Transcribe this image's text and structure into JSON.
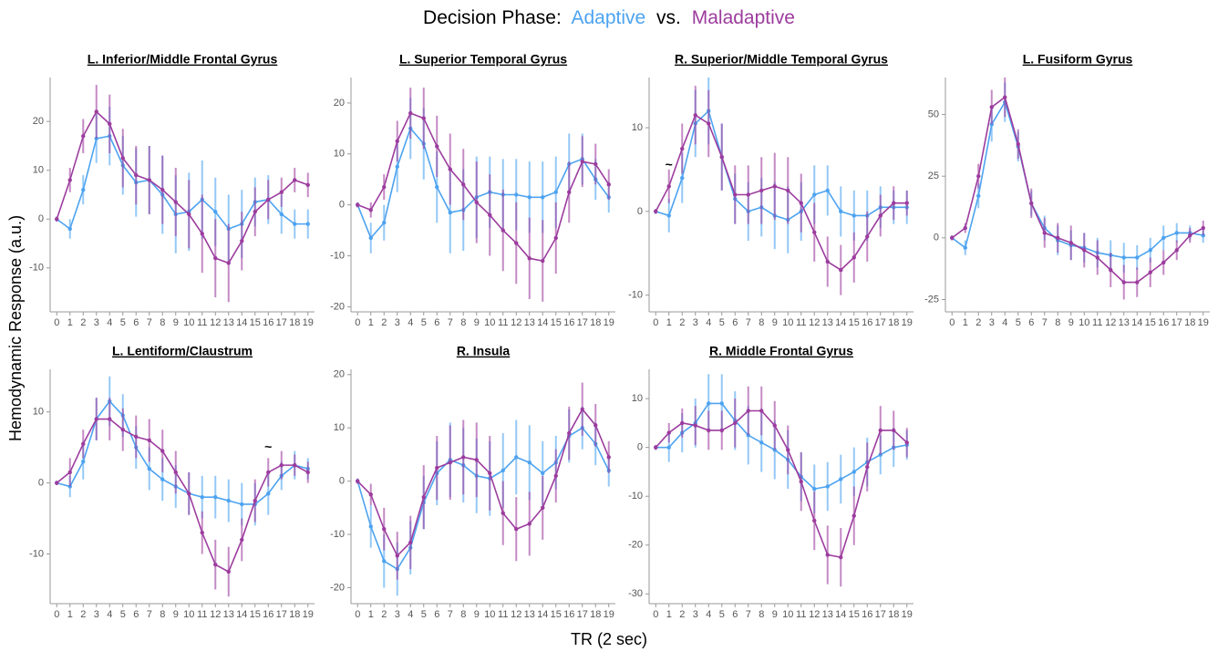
{
  "title_prefix": "Decision Phase:",
  "title_joiner": "vs.",
  "legend": [
    {
      "name": "Adaptive",
      "color": "#4da3f0"
    },
    {
      "name": "Maladaptive",
      "color": "#9c3c9e"
    }
  ],
  "ylabel": "Hemodynamic Response (a.u.)",
  "xlabel": "TR (2 sec)",
  "x": [
    0,
    1,
    2,
    3,
    4,
    5,
    6,
    7,
    8,
    9,
    10,
    11,
    12,
    13,
    14,
    15,
    16,
    17,
    18,
    19
  ],
  "xticks": [
    0,
    1,
    2,
    3,
    4,
    5,
    6,
    7,
    8,
    9,
    10,
    11,
    12,
    13,
    14,
    15,
    16,
    17,
    18,
    19
  ],
  "xlim": [
    -0.5,
    19.5
  ],
  "chart_data": [
    {
      "type": "line",
      "title": "L. Inferior/Middle Frontal Gyrus",
      "ylim": [
        -19,
        29
      ],
      "yticks": [
        -10,
        0,
        10,
        20
      ],
      "series": [
        {
          "values": [
            0,
            -2,
            6,
            16.5,
            17,
            11,
            7.5,
            8,
            5,
            1,
            1.5,
            4,
            1.5,
            -2,
            -1,
            3.5,
            4,
            1,
            -1,
            -1
          ],
          "errors": [
            0.5,
            2,
            3,
            5,
            6,
            6,
            7,
            7,
            8,
            8,
            8,
            8,
            7,
            7,
            7,
            5,
            5,
            4,
            3,
            3
          ]
        },
        {
          "values": [
            0,
            8,
            17,
            22,
            19.5,
            12.5,
            9,
            8,
            6,
            3.5,
            1,
            -3,
            -8,
            -9,
            -4.5,
            1.5,
            4,
            5.5,
            8,
            7
          ],
          "errors": [
            0.5,
            2.5,
            3.5,
            5.5,
            6,
            6,
            6,
            7,
            7,
            7,
            7,
            8,
            8,
            8,
            6,
            5,
            4,
            3,
            2.5,
            2.5
          ]
        }
      ]
    },
    {
      "type": "line",
      "title": "L. Superior Temporal Gyrus",
      "ylim": [
        -21,
        25
      ],
      "yticks": [
        -20,
        -10,
        0,
        10,
        20
      ],
      "series": [
        {
          "values": [
            0,
            -6.5,
            -3.5,
            7.5,
            15,
            12,
            3.5,
            -1.5,
            -1,
            1.5,
            2.5,
            2,
            2,
            1.5,
            1.5,
            2.5,
            8,
            9,
            5,
            1.5
          ],
          "errors": [
            0.5,
            3,
            3.5,
            5,
            6,
            7,
            7,
            8,
            8,
            8,
            7,
            7,
            7,
            7,
            7,
            7,
            6,
            5,
            4,
            3
          ]
        },
        {
          "values": [
            0,
            -1,
            3.5,
            12.5,
            18,
            17,
            11.5,
            7,
            4,
            0.5,
            -2,
            -5,
            -7.5,
            -10.5,
            -11,
            -6.5,
            2.5,
            8.5,
            8,
            4
          ],
          "errors": [
            0.5,
            1.5,
            2.5,
            4,
            5,
            6,
            6,
            7,
            7,
            8,
            8,
            8,
            8,
            8,
            8,
            7,
            6,
            5,
            4,
            3
          ]
        }
      ]
    },
    {
      "type": "line",
      "title": "R. Superior/Middle Temporal Gyrus",
      "ylim": [
        -12,
        16
      ],
      "yticks": [
        -10,
        0,
        10
      ],
      "annotation": {
        "text": "~",
        "x": 1,
        "y": 5.5
      },
      "series": [
        {
          "values": [
            0,
            -0.5,
            4,
            10.5,
            12,
            6.5,
            1.5,
            0,
            0.5,
            -0.5,
            -1,
            0,
            2,
            2.5,
            0,
            -0.5,
            -0.5,
            0.5,
            0.5,
            0.5
          ],
          "errors": [
            0.3,
            2,
            3,
            4,
            4,
            4,
            3,
            3.5,
            3.5,
            4,
            4,
            3.5,
            3.5,
            3,
            3,
            3,
            3,
            2.5,
            2,
            2
          ]
        },
        {
          "values": [
            0,
            3,
            7.5,
            11.5,
            10.5,
            6.5,
            2,
            2,
            2.5,
            3,
            2.5,
            1,
            -2.5,
            -6,
            -7,
            -5.5,
            -3,
            -0.5,
            1,
            1
          ],
          "errors": [
            0.3,
            2,
            3,
            3.5,
            4,
            4,
            3.5,
            3.5,
            4,
            4,
            4,
            3.5,
            3.5,
            3,
            3,
            3,
            3,
            2.5,
            2,
            1.5
          ]
        }
      ]
    },
    {
      "type": "line",
      "title": "L. Fusiform Gyrus",
      "ylim": [
        -30,
        65
      ],
      "yticks": [
        -25,
        0,
        25,
        50
      ],
      "series": [
        {
          "values": [
            0,
            -4,
            17,
            46,
            55,
            37,
            14,
            4,
            -1,
            -3,
            -4,
            -6,
            -7,
            -8,
            -8,
            -5,
            0,
            2,
            2,
            1
          ],
          "errors": [
            1,
            3,
            5,
            7,
            8,
            6,
            5,
            5,
            6,
            6,
            6,
            6,
            6,
            6,
            5,
            5,
            5,
            4,
            3,
            3
          ]
        },
        {
          "values": [
            0,
            4,
            25,
            53,
            57,
            38,
            14,
            2,
            0,
            -2,
            -5,
            -8,
            -13,
            -18,
            -18,
            -14,
            -10,
            -5,
            1,
            4
          ],
          "errors": [
            1,
            2,
            5,
            7,
            8,
            6,
            6,
            6,
            6,
            7,
            7,
            7,
            7,
            7,
            6,
            6,
            5,
            4,
            3,
            3
          ]
        }
      ]
    },
    {
      "type": "line",
      "title": "L. Lentiform/Claustrum",
      "ylim": [
        -17,
        16
      ],
      "yticks": [
        -10,
        0,
        10
      ],
      "annotation": {
        "text": "~",
        "x": 16,
        "y": 5
      },
      "series": [
        {
          "values": [
            0,
            -0.5,
            3,
            9,
            11.5,
            9.5,
            5,
            2,
            0.5,
            -0.5,
            -1.5,
            -2,
            -2,
            -2.5,
            -3,
            -3,
            -1.5,
            1,
            2.5,
            2
          ],
          "errors": [
            0.3,
            1.5,
            2.5,
            3,
            3.5,
            3,
            3,
            3,
            3,
            3,
            3,
            3,
            3,
            3,
            3,
            3,
            3,
            2,
            2,
            1.5
          ]
        },
        {
          "values": [
            0,
            1.5,
            5.5,
            9,
            9,
            7.5,
            6.5,
            6,
            4.5,
            1.5,
            -1.5,
            -7,
            -11.5,
            -12.5,
            -8,
            -2.5,
            1.5,
            2.5,
            2.5,
            1.5
          ],
          "errors": [
            0.3,
            2,
            2,
            3,
            3,
            3,
            3,
            3,
            3,
            3,
            3,
            3,
            3.5,
            3.5,
            3,
            3,
            2,
            2,
            1.5,
            1.5
          ]
        }
      ]
    },
    {
      "type": "line",
      "title": "R. Insula",
      "ylim": [
        -23,
        21
      ],
      "yticks": [
        -20,
        -10,
        0,
        10,
        20
      ],
      "series": [
        {
          "values": [
            0,
            -8.5,
            -15,
            -16.5,
            -12.5,
            -4,
            1.5,
            4,
            3,
            1,
            0.5,
            2,
            4.5,
            3.5,
            1.5,
            3.5,
            8.5,
            10,
            7,
            2
          ],
          "errors": [
            0.5,
            4,
            5,
            5,
            5,
            5,
            6,
            7,
            7,
            7,
            7,
            7,
            7,
            7,
            6,
            5,
            5,
            4,
            4,
            3
          ]
        },
        {
          "values": [
            0,
            -2.5,
            -9,
            -14,
            -11.5,
            -3,
            2.5,
            3.5,
            4.5,
            4,
            1.5,
            -6,
            -9,
            -8,
            -5,
            1,
            9,
            13.5,
            10.5,
            4.5
          ],
          "errors": [
            0.5,
            2,
            4,
            4.5,
            5,
            6,
            6,
            7,
            7,
            7,
            7,
            6,
            6,
            6,
            6,
            5,
            5,
            5,
            4,
            3
          ]
        }
      ]
    },
    {
      "type": "line",
      "title": "R. Middle Frontal Gyrus",
      "ylim": [
        -32,
        16
      ],
      "yticks": [
        -30,
        -20,
        -10,
        0,
        10
      ],
      "series": [
        {
          "values": [
            0,
            0,
            3,
            5,
            9,
            9,
            5.5,
            2.5,
            1,
            -0.5,
            -2.5,
            -6,
            -8.5,
            -8,
            -6.5,
            -5,
            -3,
            -1.5,
            0,
            0.5
          ],
          "errors": [
            0.5,
            3,
            4,
            5,
            6,
            6,
            6,
            6,
            6,
            6,
            6,
            5,
            5,
            5,
            5,
            5,
            5,
            4,
            4,
            3
          ]
        },
        {
          "values": [
            0,
            3,
            5,
            4.5,
            3.5,
            3.5,
            5,
            7.5,
            7.5,
            4.5,
            -0.5,
            -7,
            -15,
            -22,
            -22.5,
            -14,
            -4,
            3.5,
            3.5,
            1
          ],
          "errors": [
            0.5,
            2,
            3,
            4,
            4,
            4,
            5,
            5,
            5,
            5,
            5,
            6,
            6,
            6,
            6,
            6,
            5,
            5,
            4,
            3
          ]
        }
      ]
    }
  ]
}
